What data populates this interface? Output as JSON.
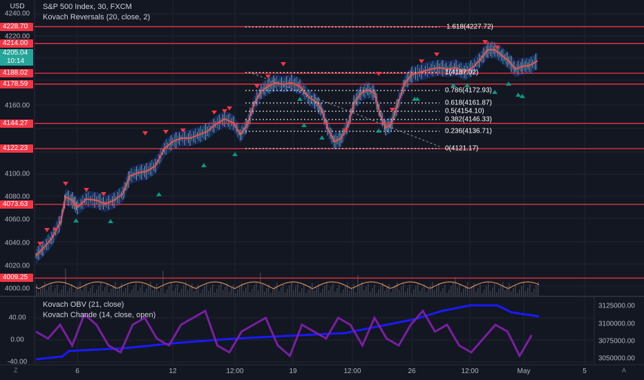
{
  "header": {
    "currency": "USD",
    "symbol_line": "S&P 500 Index, 30, FXCM",
    "indicator_line": "Kovach Reversals (20, close, 2)"
  },
  "price_axis": {
    "ticks": [
      "4240.00",
      "4220.00",
      "4160.00",
      "4100.00",
      "4080.00",
      "4060.00",
      "4040.00",
      "4020.00",
      "4000.00"
    ],
    "red_levels": [
      "4228.70",
      "4214.00",
      "4188.02",
      "4178.59",
      "4144.27",
      "4122.23",
      "4073.63",
      "4009.25"
    ],
    "current_price": "4205.04",
    "countdown": "10:14"
  },
  "fibonacci": {
    "levels": [
      "1.618(4227.72)",
      "1(4187.02)",
      "0.786(4172.93)",
      "0.618(4161.87)",
      "0.5(4154.10)",
      "0.382(4146.33)",
      "0.236(4136.71)",
      "0(4121.17)"
    ]
  },
  "lower_pane": {
    "title1": "Kovach OBV (21, close)",
    "title2": "Kovach Chande (14, close, open)",
    "left_ticks": [
      "40.00",
      "0.00",
      "-40.00"
    ],
    "right_ticks": [
      "3125000.00",
      "3100000.00",
      "3075000.00",
      "3050000.00"
    ]
  },
  "time_axis": {
    "ticks": [
      "6",
      "12",
      "12:00",
      "19",
      "12:00",
      "26",
      "12:00",
      "May",
      "5"
    ]
  },
  "corner_buttons": {
    "left": "Z",
    "right": "A"
  },
  "colors": {
    "background": "#131722",
    "red_level": "#f23645",
    "price_line": "#ef5350",
    "band": "#1e3a8a",
    "up_arrow": "#089981",
    "down_arrow": "#f23645",
    "obv": "#1a1aff",
    "chande": "#7b1fa2",
    "oscillator": "#f7a35c"
  }
}
